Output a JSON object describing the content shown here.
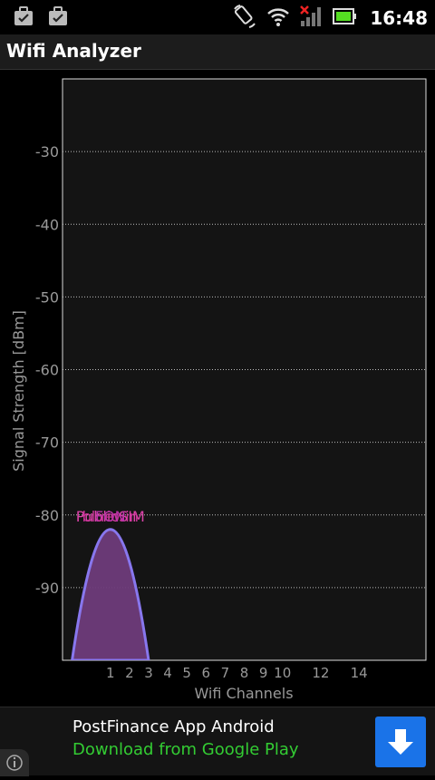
{
  "status_bar": {
    "time": "16:48",
    "icons": [
      "briefcase-icon",
      "briefcase-icon",
      "rotate-icon",
      "wifi-icon",
      "signal-off-icon",
      "battery-icon"
    ]
  },
  "app": {
    "title": "Wifi Analyzer"
  },
  "chart_data": {
    "type": "area",
    "ylabel": "Signal Strength [dBm]",
    "xlabel": "Wifi Channels",
    "yticks": [
      -30,
      -40,
      -50,
      -60,
      -70,
      -80,
      -90
    ],
    "xticks": [
      1,
      2,
      3,
      4,
      5,
      6,
      7,
      8,
      9,
      10,
      12,
      14
    ],
    "xlim": [
      -1.5,
      17.5
    ],
    "ylim": [
      -100,
      -20
    ],
    "grid": true,
    "series": [
      {
        "name": "bluewin",
        "channel": 1,
        "width": 4,
        "peak": -82,
        "color": "#8877ee",
        "label_color": "#cc3399"
      }
    ],
    "labels": [
      {
        "text": "PublicSIM",
        "channel": 1,
        "y": -80,
        "color": "#dd44aa"
      },
      {
        "text": "bluewin",
        "channel": 1,
        "y": -80,
        "color": "#cc3399"
      },
      {
        "text": "FON",
        "channel": 1,
        "y": -80,
        "color": "#bb33aa"
      }
    ]
  },
  "ad": {
    "title": "PostFinance App Android",
    "subtitle": "Download from Google Play"
  }
}
